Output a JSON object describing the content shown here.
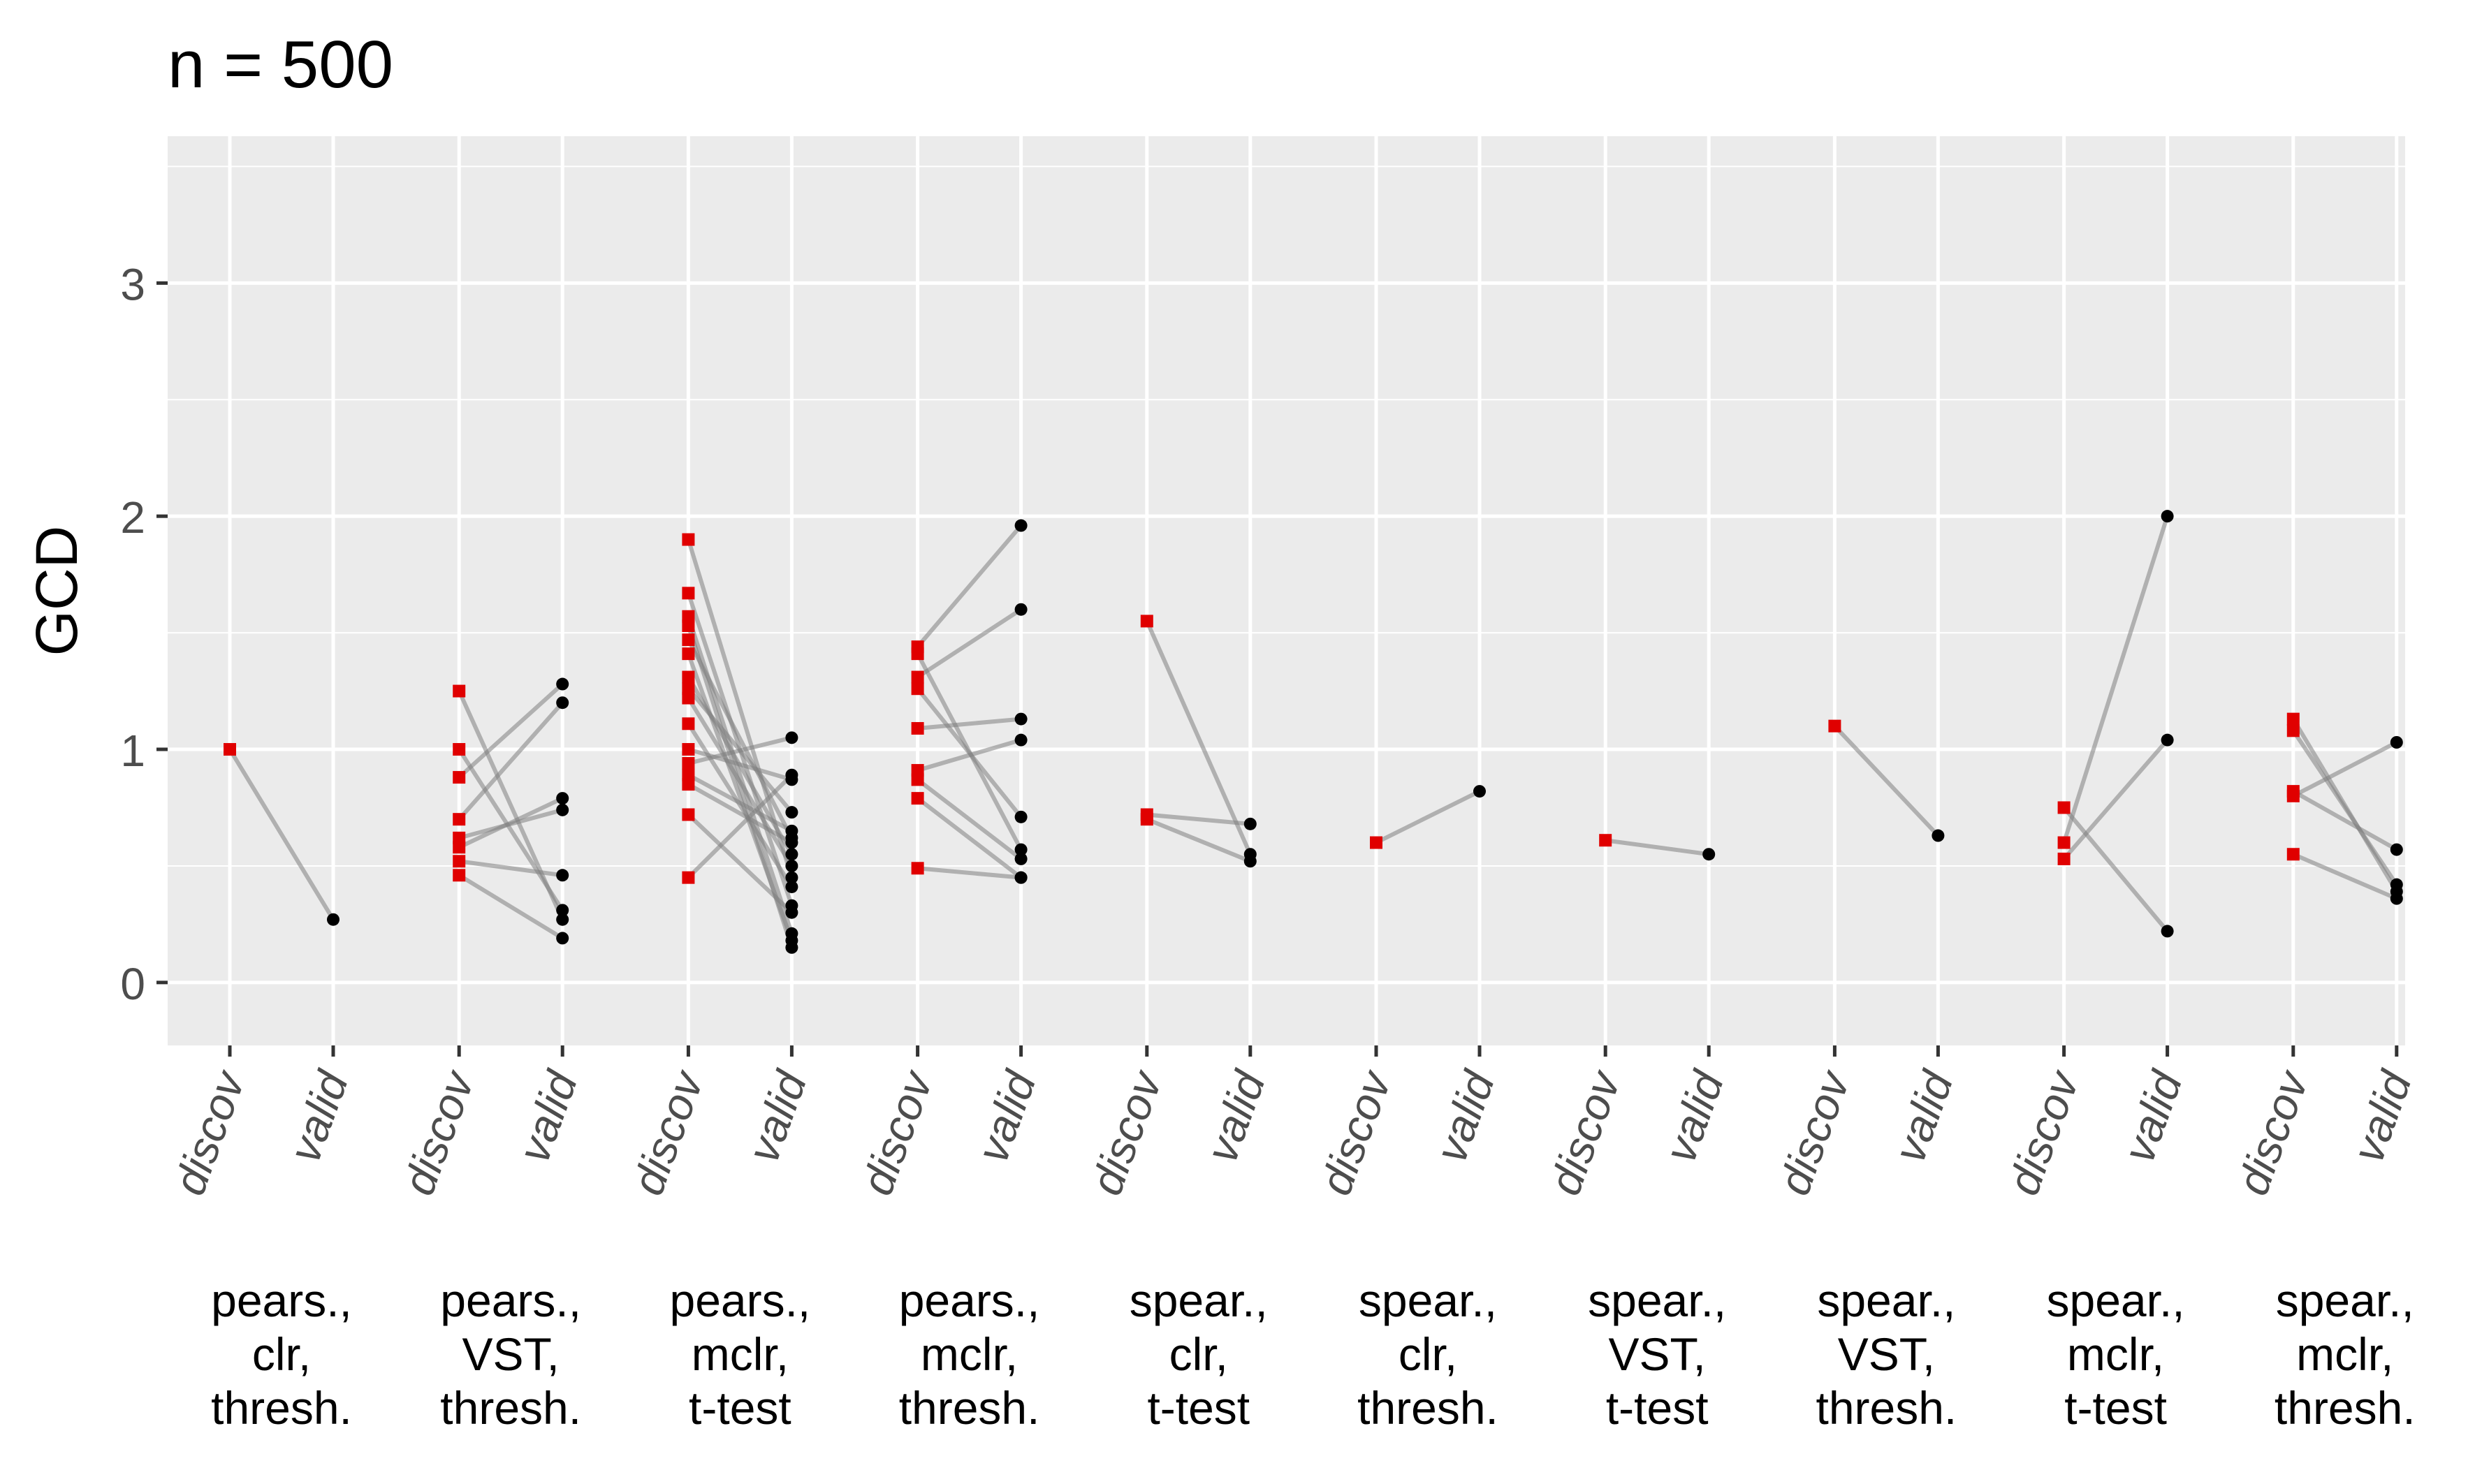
{
  "title": "n = 500",
  "chart_data": {
    "type": "scatter",
    "title": "n = 500",
    "ylabel": "GCD",
    "xlabel": "",
    "ylim": [
      -0.27,
      3.63
    ],
    "y_ticks": [
      0,
      1,
      2,
      3
    ],
    "grid": true,
    "x_tick_labels": [
      "discov",
      "valid"
    ],
    "colors": {
      "discov": "#e00000",
      "valid": "#000000",
      "line": "#7f7f7f",
      "panel": "#ebebeb",
      "grid": "#ffffff"
    },
    "groups": [
      {
        "label": [
          "pears.,",
          "clr,",
          "thresh."
        ],
        "pairs": [
          [
            1.0,
            0.27
          ]
        ]
      },
      {
        "label": [
          "pears.,",
          "VST,",
          "thresh."
        ],
        "pairs": [
          [
            1.25,
            0.27
          ],
          [
            1.0,
            0.31
          ],
          [
            0.88,
            1.28
          ],
          [
            0.7,
            1.2
          ],
          [
            0.62,
            0.74
          ],
          [
            0.58,
            0.79
          ],
          [
            0.52,
            0.46
          ],
          [
            0.46,
            0.19
          ]
        ]
      },
      {
        "label": [
          "pears.,",
          "mclr,",
          "t-test"
        ],
        "pairs": [
          [
            1.9,
            0.45
          ],
          [
            1.67,
            0.33
          ],
          [
            1.57,
            0.21
          ],
          [
            1.53,
            0.15
          ],
          [
            1.47,
            0.62
          ],
          [
            1.41,
            0.18
          ],
          [
            1.31,
            0.55
          ],
          [
            1.26,
            0.73
          ],
          [
            1.22,
            0.5
          ],
          [
            1.11,
            0.41
          ],
          [
            1.0,
            0.87
          ],
          [
            0.94,
            1.05
          ],
          [
            0.89,
            0.65
          ],
          [
            0.85,
            0.6
          ],
          [
            0.72,
            0.3
          ],
          [
            0.45,
            0.89
          ]
        ]
      },
      {
        "label": [
          "pears.,",
          "mclr,",
          "thresh."
        ],
        "pairs": [
          [
            1.44,
            1.96
          ],
          [
            1.41,
            0.57
          ],
          [
            1.31,
            1.6
          ],
          [
            1.26,
            0.71
          ],
          [
            1.09,
            1.13
          ],
          [
            0.91,
            1.04
          ],
          [
            0.87,
            0.53
          ],
          [
            0.79,
            0.45
          ],
          [
            0.49,
            0.45
          ]
        ]
      },
      {
        "label": [
          "spear.,",
          "clr,",
          "t-test"
        ],
        "pairs": [
          [
            1.55,
            0.55
          ],
          [
            0.72,
            0.68
          ],
          [
            0.7,
            0.52
          ]
        ]
      },
      {
        "label": [
          "spear.,",
          "clr,",
          "thresh."
        ],
        "pairs": [
          [
            0.6,
            0.82
          ]
        ]
      },
      {
        "label": [
          "spear.,",
          "VST,",
          "t-test"
        ],
        "pairs": [
          [
            0.61,
            0.55
          ]
        ]
      },
      {
        "label": [
          "spear.,",
          "VST,",
          "thresh."
        ],
        "pairs": [
          [
            1.1,
            0.63
          ]
        ]
      },
      {
        "label": [
          "spear.,",
          "mclr,",
          "t-test"
        ],
        "pairs": [
          [
            0.75,
            0.22
          ],
          [
            0.6,
            2.0
          ],
          [
            0.53,
            1.04
          ]
        ]
      },
      {
        "label": [
          "spear.,",
          "mclr,",
          "thresh."
        ],
        "pairs": [
          [
            1.13,
            0.39
          ],
          [
            1.08,
            0.42
          ],
          [
            0.82,
            0.57
          ],
          [
            0.8,
            1.03
          ],
          [
            0.55,
            0.36
          ]
        ]
      }
    ]
  }
}
